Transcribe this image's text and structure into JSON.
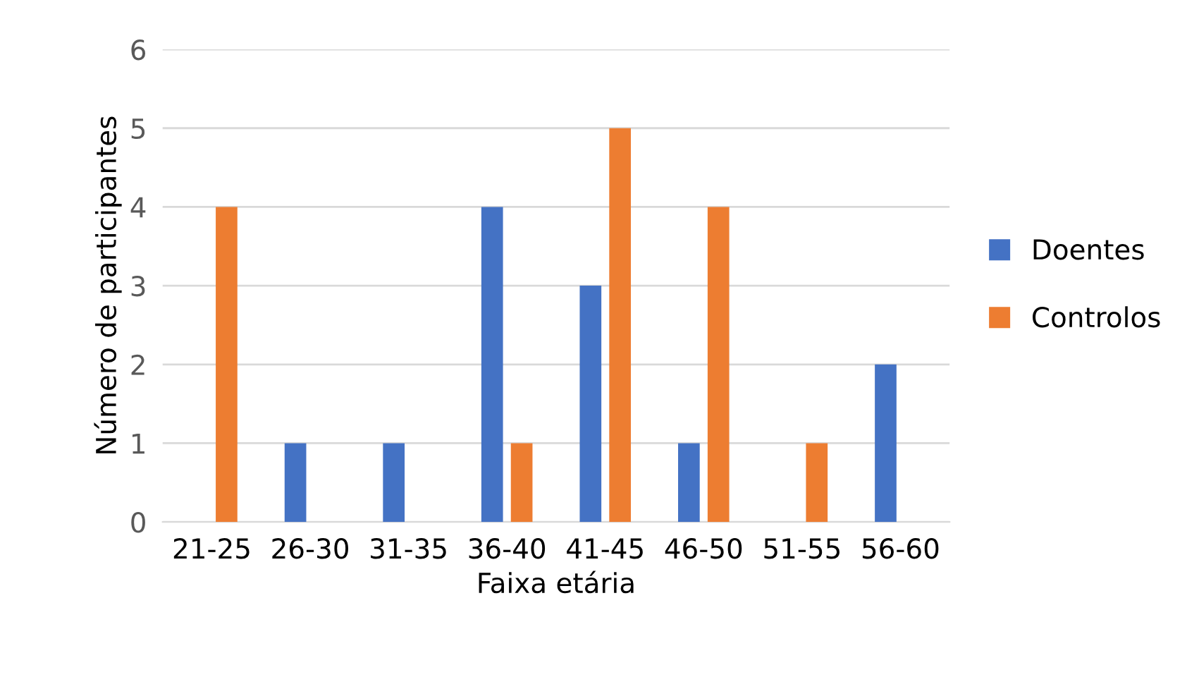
{
  "chart_data": {
    "type": "bar",
    "xlabel": "Faixa etária",
    "ylabel": "Número de participantes",
    "categories": [
      "21-25",
      "26-30",
      "31-35",
      "36-40",
      "41-45",
      "46-50",
      "51-55",
      "56-60"
    ],
    "series": [
      {
        "name": "Doentes",
        "color": "#4472c4",
        "values": [
          0,
          1,
          1,
          4,
          3,
          1,
          0,
          2
        ]
      },
      {
        "name": "Controlos",
        "color": "#ed7d31",
        "values": [
          4,
          0,
          0,
          1,
          5,
          4,
          1,
          0
        ]
      }
    ],
    "ylim": [
      0,
      6
    ],
    "yticks": [
      0,
      1,
      2,
      3,
      4,
      5,
      6
    ],
    "grid": "y",
    "legend": "right"
  }
}
